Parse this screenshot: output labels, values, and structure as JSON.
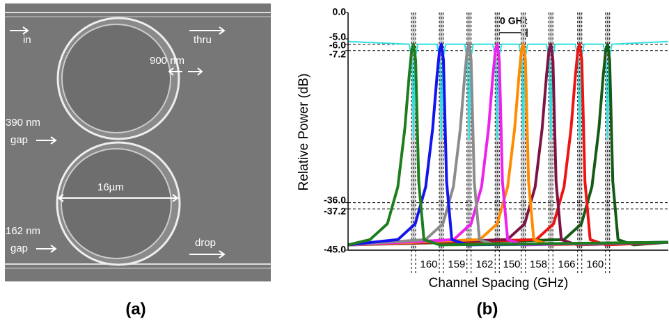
{
  "panel_a": {
    "label": "(a)",
    "texts": {
      "in": "in",
      "thru": "thru",
      "width": "900 nm",
      "gap1": "390 nm",
      "gap1_word": "gap",
      "diameter": "16µm",
      "gap2": "162 nm",
      "gap2_word": "gap",
      "drop": "drop"
    }
  },
  "chart_data": {
    "type": "line",
    "panel_label": "(b)",
    "y_label": "Relative Power (dB)",
    "x_label": "Channel Spacing (GHz)",
    "annotation": "50 GHz",
    "xlim": [
      0,
      1840
    ],
    "ylim": [
      -45,
      0
    ],
    "yticks": [
      {
        "value": 0,
        "label": "0.0"
      },
      {
        "value": -5,
        "label": "-5.0"
      },
      {
        "value": -6,
        "label": "-6.0"
      },
      {
        "value": -7.2,
        "label": "-7.2"
      },
      {
        "value": -36,
        "label": "-36.0"
      },
      {
        "value": -37.2,
        "label": "-37.2"
      },
      {
        "value": -45,
        "label": "-45.0"
      }
    ],
    "reference_lines": [
      -6,
      -7.2,
      -36,
      -37.2
    ],
    "channel_centers": [
      376,
      536,
      695,
      857,
      1007,
      1165,
      1331,
      1491
    ],
    "channel_spacings": [
      160,
      159,
      162,
      150,
      158,
      166,
      160
    ],
    "series": [
      {
        "color": "#1e7e1e",
        "x": [
          0,
          126,
          226,
          286,
          326,
          351,
          366,
          376,
          388,
          406,
          436,
          526,
          1840
        ],
        "values": [
          -44,
          -43,
          -40,
          -33,
          -22,
          -12,
          -7,
          -6,
          -9,
          -32,
          -43,
          -44,
          -43.5
        ]
      },
      {
        "color": "#1414ee",
        "x": [
          0,
          286,
          386,
          446,
          486,
          511,
          526,
          536,
          548,
          566,
          596,
          686,
          1840
        ],
        "values": [
          -44,
          -43,
          -40,
          -33,
          -22,
          -12,
          -7,
          -6,
          -9,
          -32,
          -43,
          -44,
          -43.5
        ]
      },
      {
        "color": "#8c8c8c",
        "x": [
          0,
          445,
          545,
          605,
          645,
          670,
          685,
          695,
          707,
          725,
          755,
          845,
          1840
        ],
        "values": [
          -44,
          -43,
          -40,
          -33,
          -22,
          -12,
          -7,
          -6,
          -9,
          -32,
          -43,
          -44,
          -43.5
        ]
      },
      {
        "color": "#ee22ee",
        "x": [
          0,
          607,
          707,
          767,
          807,
          832,
          847,
          857,
          869,
          887,
          917,
          1007,
          1840
        ],
        "values": [
          -44,
          -43,
          -40,
          -33,
          -22,
          -12,
          -7,
          -6,
          -9,
          -32,
          -43,
          -44,
          -43.5
        ]
      },
      {
        "color": "#ff8c00",
        "x": [
          0,
          757,
          857,
          917,
          957,
          982,
          997,
          1007,
          1019,
          1037,
          1067,
          1157,
          1840
        ],
        "values": [
          -44,
          -43,
          -40,
          -33,
          -22,
          -12,
          -7,
          -6,
          -9,
          -32,
          -43,
          -44,
          -43.5
        ]
      },
      {
        "color": "#7f1444",
        "x": [
          0,
          915,
          1015,
          1075,
          1115,
          1140,
          1155,
          1165,
          1177,
          1195,
          1225,
          1315,
          1840
        ],
        "values": [
          -44,
          -43,
          -40,
          -33,
          -22,
          -12,
          -7,
          -6,
          -9,
          -32,
          -43,
          -44,
          -43.5
        ]
      },
      {
        "color": "#ee1414",
        "x": [
          0,
          1081,
          1181,
          1241,
          1281,
          1306,
          1321,
          1331,
          1343,
          1361,
          1391,
          1481,
          1840
        ],
        "values": [
          -44,
          -43,
          -40,
          -33,
          -22,
          -12,
          -7,
          -6,
          -9,
          -32,
          -43,
          -44,
          -43.5
        ]
      },
      {
        "color": "#165a16",
        "x": [
          0,
          1241,
          1341,
          1401,
          1441,
          1466,
          1481,
          1491,
          1503,
          1521,
          1551,
          1641,
          1840
        ],
        "values": [
          -44,
          -43,
          -40,
          -33,
          -22,
          -12,
          -7,
          -6,
          -9,
          -32,
          -43,
          -44,
          -43.5
        ]
      },
      {
        "color": "#30e0e0",
        "x": [
          0,
          351,
          368,
          376,
          384,
          401,
          511,
          528,
          536,
          544,
          561,
          670,
          687,
          695,
          703,
          720,
          832,
          849,
          857,
          865,
          882,
          982,
          999,
          1007,
          1015,
          1032,
          1140,
          1157,
          1165,
          1173,
          1190,
          1306,
          1323,
          1331,
          1339,
          1356,
          1466,
          1483,
          1491,
          1499,
          1516,
          1840
        ],
        "values": [
          -5.5,
          -6,
          -9,
          -24,
          -9,
          -6,
          -6,
          -9,
          -24,
          -9,
          -6,
          -6,
          -9,
          -24,
          -9,
          -6,
          -6,
          -9,
          -24,
          -9,
          -6,
          -6,
          -9,
          -24,
          -9,
          -6,
          -6,
          -9,
          -24,
          -9,
          -6,
          -6,
          -9,
          -24,
          -9,
          -6,
          -6,
          -9,
          -24,
          -9,
          -6,
          -5.5
        ]
      }
    ]
  }
}
